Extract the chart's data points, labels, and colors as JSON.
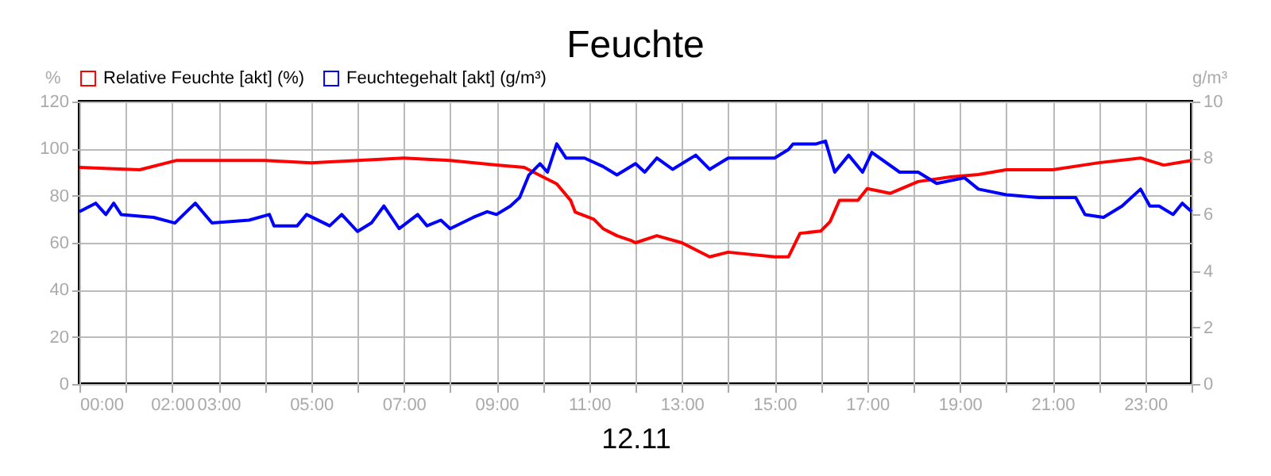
{
  "chart_data": {
    "type": "line",
    "title": "Feuchte",
    "xlabel": "12.11",
    "ylabel": "%",
    "y2label": "g/m³",
    "xlim": [
      0,
      24
    ],
    "xticks": [
      {
        "value": 0,
        "label": "00:00"
      },
      {
        "value": 1,
        "label": null
      },
      {
        "value": 2,
        "label": "02:00"
      },
      {
        "value": 3,
        "label": "03:00"
      },
      {
        "value": 4,
        "label": null
      },
      {
        "value": 5,
        "label": "05:00"
      },
      {
        "value": 6,
        "label": null
      },
      {
        "value": 7,
        "label": "07:00"
      },
      {
        "value": 8,
        "label": null
      },
      {
        "value": 9,
        "label": "09:00"
      },
      {
        "value": 10,
        "label": null
      },
      {
        "value": 11,
        "label": "11:00"
      },
      {
        "value": 12,
        "label": null
      },
      {
        "value": 13,
        "label": "13:00"
      },
      {
        "value": 14,
        "label": null
      },
      {
        "value": 15,
        "label": "15:00"
      },
      {
        "value": 16,
        "label": null
      },
      {
        "value": 17,
        "label": "17:00"
      },
      {
        "value": 18,
        "label": null
      },
      {
        "value": 19,
        "label": "19:00"
      },
      {
        "value": 20,
        "label": null
      },
      {
        "value": 21,
        "label": "21:00"
      },
      {
        "value": 22,
        "label": null
      },
      {
        "value": 23,
        "label": "23:00"
      },
      {
        "value": 24,
        "label": null
      }
    ],
    "ylim": [
      0,
      120
    ],
    "yticks": [
      0,
      20,
      40,
      60,
      80,
      100,
      120
    ],
    "y2lim": [
      0,
      10
    ],
    "y2ticks": [
      0,
      2,
      4,
      6,
      8,
      10
    ],
    "grid": true,
    "legend": "top left",
    "marker": "none",
    "line_style": "solid",
    "series": [
      {
        "name": "Relative Feuchte [akt] (%)",
        "color": "#ff0000",
        "x": [
          0,
          1.3,
          2.1,
          4.0,
          5,
          6,
          7,
          8,
          9,
          9.6,
          9.9,
          10.3,
          10.6,
          10.7,
          11.1,
          11.3,
          11.6,
          11.9,
          12.0,
          12.46,
          13.0,
          13.6,
          14.0,
          15.0,
          15.3,
          15.55,
          16.0,
          16.2,
          16.4,
          16.8,
          17.0,
          17.5,
          18.1,
          18.8,
          19.4,
          20,
          21,
          22,
          22.9,
          23.4,
          24
        ],
        "values": [
          92,
          91,
          95,
          95,
          94,
          95,
          96,
          95,
          93,
          92,
          89,
          85,
          78,
          73,
          70,
          66,
          63,
          61,
          60,
          63,
          60,
          54,
          56,
          54,
          54,
          64,
          65,
          69,
          78,
          78,
          83,
          81,
          86,
          88,
          89,
          91,
          91,
          94,
          96,
          93,
          95
        ]
      },
      {
        "name": "Feuchtegehalt [akt] (g/m³)",
        "color": "#0000ff",
        "axis": "y2",
        "x": [
          0,
          0.35,
          0.57,
          0.74,
          0.9,
          1.6,
          2.06,
          2.5,
          2.86,
          3.66,
          4.1,
          4.2,
          4.7,
          4.9,
          5.4,
          5.66,
          6.0,
          6.3,
          6.57,
          6.9,
          7.3,
          7.5,
          7.8,
          8.0,
          8.5,
          8.8,
          9.0,
          9.3,
          9.5,
          9.7,
          9.94,
          10.1,
          10.3,
          10.5,
          10.9,
          11.3,
          11.6,
          12.0,
          12.2,
          12.46,
          12.8,
          13.3,
          13.6,
          14.0,
          15.0,
          15.3,
          15.4,
          15.9,
          16.1,
          16.3,
          16.6,
          16.9,
          17.1,
          17.7,
          18.1,
          18.5,
          19.1,
          19.4,
          20,
          20.7,
          21.5,
          21.7,
          22.1,
          22.5,
          22.9,
          23.1,
          23.3,
          23.6,
          23.8,
          24
        ],
        "values": [
          6.1,
          6.4,
          6.0,
          6.4,
          6.0,
          5.9,
          5.7,
          6.4,
          5.7,
          5.8,
          6.0,
          5.6,
          5.6,
          6.0,
          5.6,
          6.0,
          5.4,
          5.7,
          6.3,
          5.5,
          6.0,
          5.6,
          5.8,
          5.5,
          5.9,
          6.1,
          6.0,
          6.3,
          6.6,
          7.4,
          7.8,
          7.5,
          8.5,
          8.0,
          8.0,
          7.7,
          7.4,
          7.8,
          7.5,
          8.0,
          7.6,
          8.1,
          7.6,
          8.0,
          8.0,
          8.3,
          8.5,
          8.5,
          8.6,
          7.5,
          8.1,
          7.5,
          8.2,
          7.5,
          7.5,
          7.1,
          7.3,
          6.9,
          6.7,
          6.6,
          6.6,
          6.0,
          5.9,
          6.3,
          6.9,
          6.3,
          6.3,
          6.0,
          6.4,
          6.1
        ]
      }
    ]
  }
}
